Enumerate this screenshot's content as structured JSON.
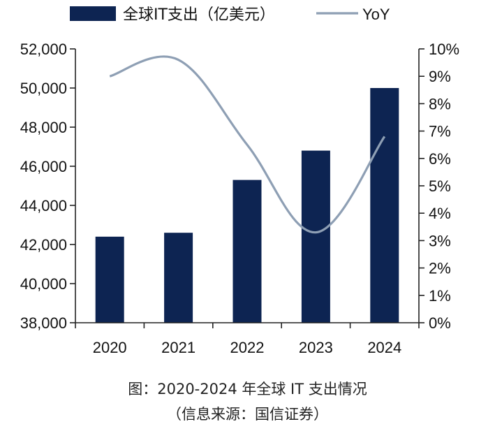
{
  "chart_data": {
    "type": "bar",
    "title": "",
    "categories": [
      "2020",
      "2021",
      "2022",
      "2023",
      "2024"
    ],
    "series": [
      {
        "name": "全球IT支出（亿美元）",
        "kind": "bar",
        "axis": "left",
        "color": "#0d2452",
        "values": [
          42400,
          42600,
          45300,
          46800,
          50000
        ]
      },
      {
        "name": "YoY",
        "kind": "line",
        "axis": "right",
        "color": "#8e9fb4",
        "values": [
          9.0,
          9.6,
          6.5,
          3.3,
          6.8
        ]
      }
    ],
    "y_left": {
      "min": 38000,
      "max": 52000,
      "step": 2000,
      "tick_labels": [
        "38,000",
        "40,000",
        "42,000",
        "44,000",
        "46,000",
        "48,000",
        "50,000",
        "52,000"
      ]
    },
    "y_right": {
      "min": 0,
      "max": 10,
      "step": 1,
      "tick_labels": [
        "0%",
        "1%",
        "2%",
        "3%",
        "4%",
        "5%",
        "6%",
        "7%",
        "8%",
        "9%",
        "10%"
      ]
    },
    "xlabel": "",
    "ylabel": "",
    "legend": [
      "全球IT支出（亿美元）",
      "YoY"
    ],
    "legend_position": "top",
    "grid": false
  },
  "caption": {
    "line1": "图：2020-2024 年全球 IT 支出情况",
    "line2": "（信息来源：国信证券）"
  }
}
